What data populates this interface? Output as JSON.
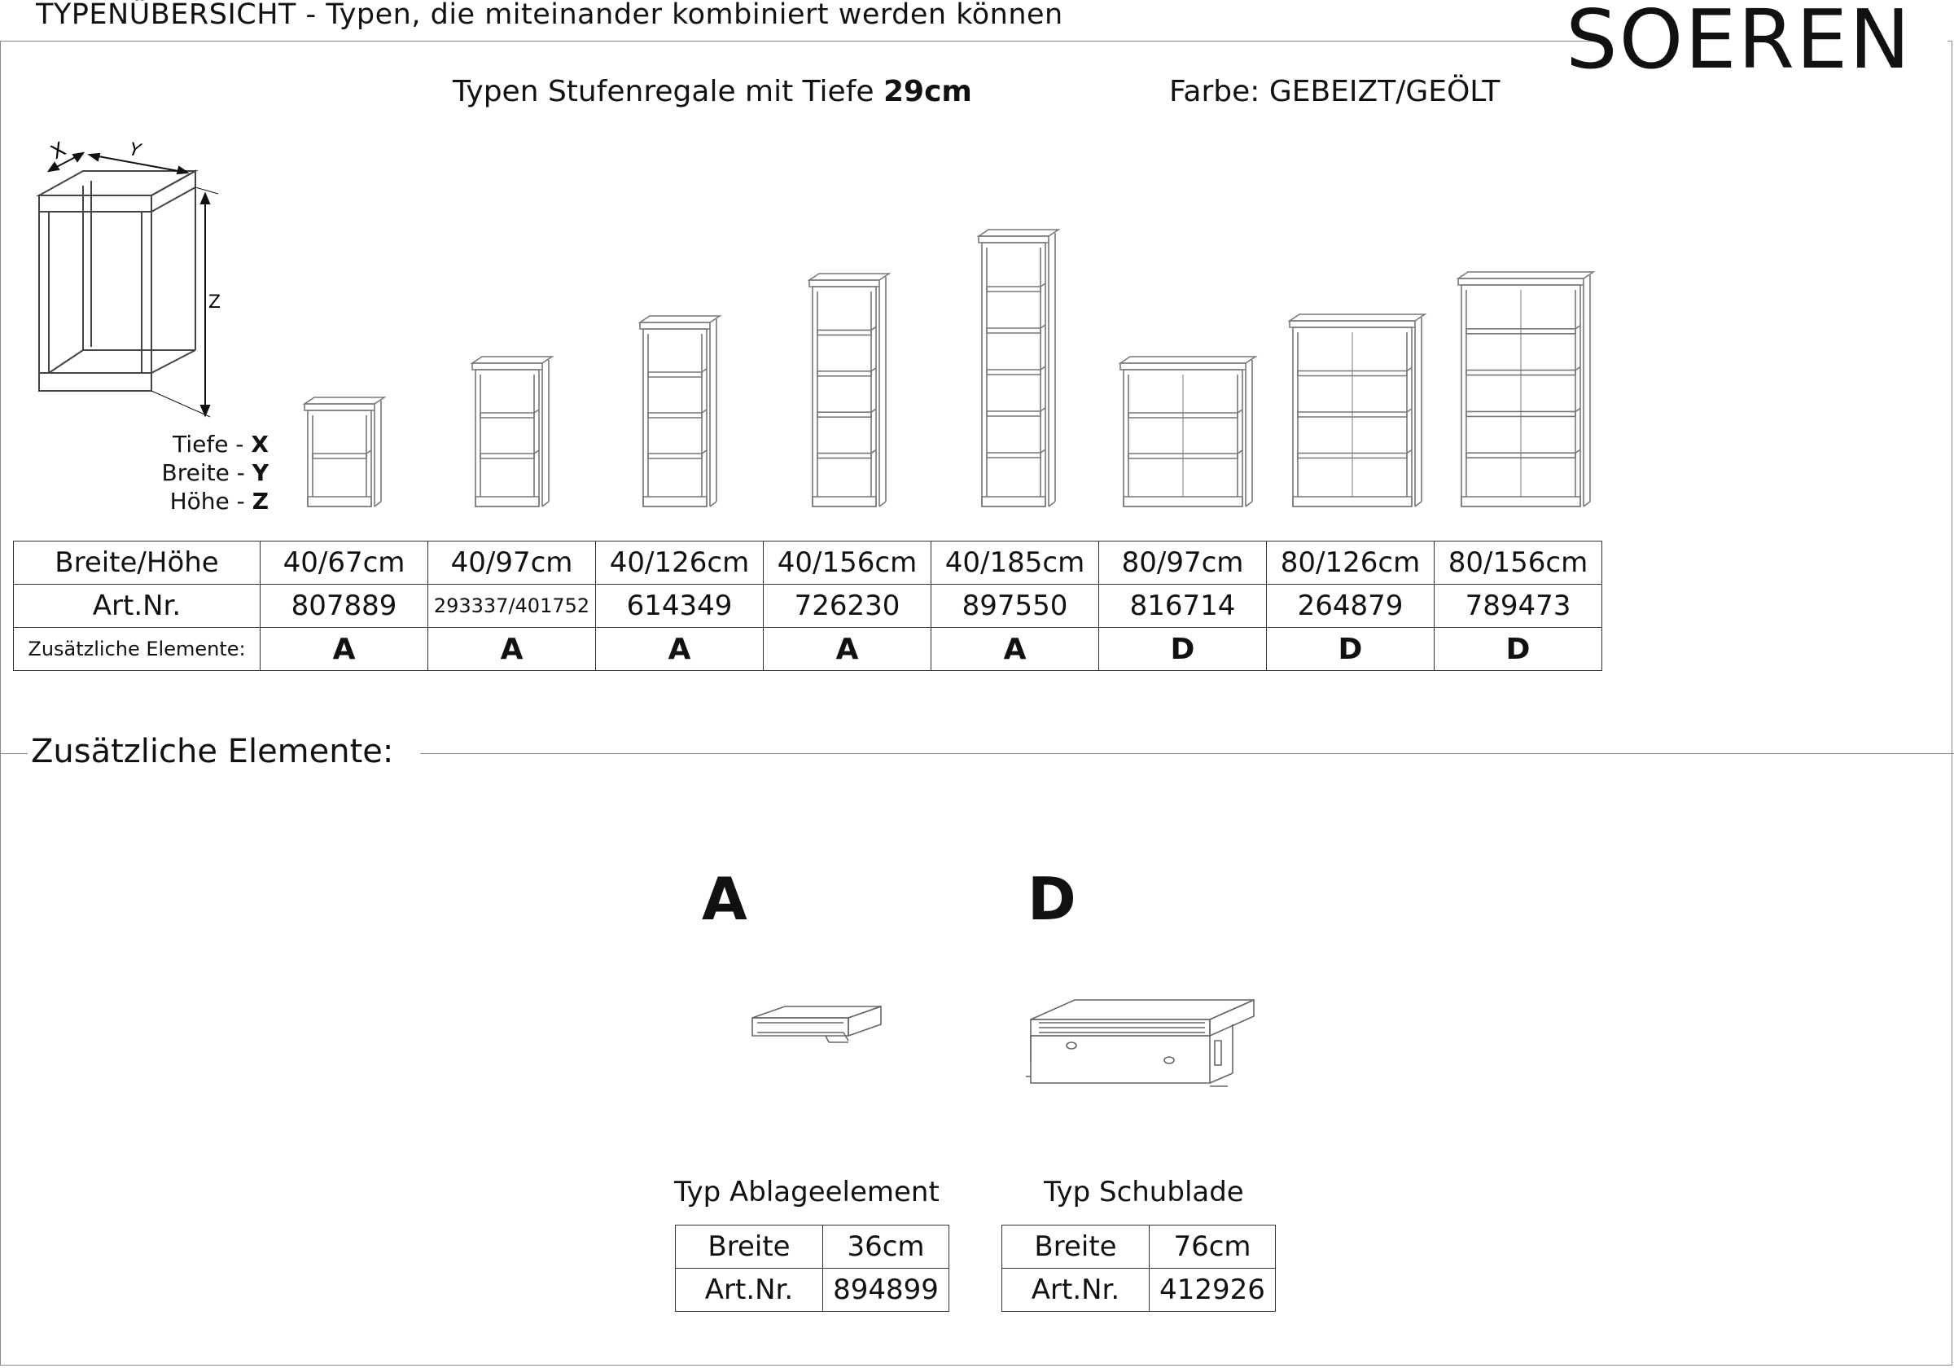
{
  "header": {
    "title": "TYPENÜBERSICHT - Typen, die miteinander kombiniert werden können",
    "brand": "SOEREN"
  },
  "subtitle": {
    "prefix": "Typen Stufenregale mit Tiefe ",
    "depth": "29cm",
    "color": "Farbe: GEBEIZT/GEÖLT"
  },
  "dimension_diagram": {
    "x_label": "X",
    "y_label": "Y",
    "z_label": "Z",
    "legend": [
      {
        "name": "Tiefe - ",
        "axis": "X"
      },
      {
        "name": "Breite - ",
        "axis": "Y"
      },
      {
        "name": "Höhe - ",
        "axis": "Z"
      }
    ]
  },
  "shelves": [
    {
      "shelves": 2
    },
    {
      "shelves": 3
    },
    {
      "shelves": 4
    },
    {
      "shelves": 5
    },
    {
      "shelves": 6
    },
    {
      "shelves": 3
    },
    {
      "shelves": 4
    },
    {
      "shelves": 5
    }
  ],
  "main_table": {
    "row_labels": [
      "Breite/Höhe",
      "Art.Nr.",
      "Zusätzliche Elemente:"
    ],
    "columns": [
      {
        "size": "40/67cm",
        "art": "807889",
        "extra": "A"
      },
      {
        "size": "40/97cm",
        "art": "293337/401752",
        "extra": "A"
      },
      {
        "size": "40/126cm",
        "art": "614349",
        "extra": "A"
      },
      {
        "size": "40/156cm",
        "art": "726230",
        "extra": "A"
      },
      {
        "size": "40/185cm",
        "art": "897550",
        "extra": "A"
      },
      {
        "size": "80/97cm",
        "art": "816714",
        "extra": "D"
      },
      {
        "size": "80/126cm",
        "art": "264879",
        "extra": "D"
      },
      {
        "size": "80/156cm",
        "art": "789473",
        "extra": "D"
      }
    ]
  },
  "extras": {
    "section_title": "Zusätzliche Elemente:",
    "items": [
      {
        "letter": "A",
        "caption": "Typ Ablageelement",
        "width_label": "Breite",
        "width": "36cm",
        "art_label": "Art.Nr.",
        "art": "894899"
      },
      {
        "letter": "D",
        "caption": "Typ Schublade",
        "width_label": "Breite",
        "width": "76cm",
        "art_label": "Art.Nr.",
        "art": "412926"
      }
    ]
  }
}
